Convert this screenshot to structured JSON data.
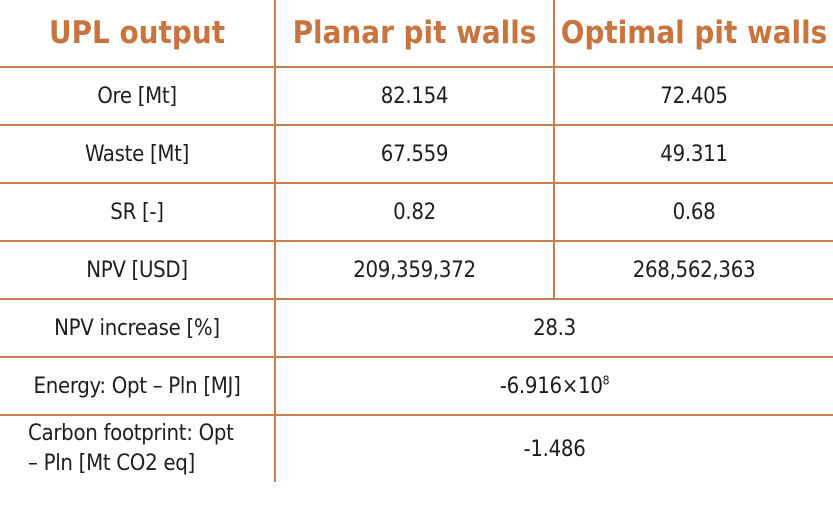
{
  "headers": [
    "UPL output",
    "Planar pit walls",
    "Optimal pit walls"
  ],
  "rows": [
    {
      "label": "Ore [Mt]",
      "planar": "82.154",
      "optimal": "72.405"
    },
    {
      "label": "Waste [Mt]",
      "planar": "67.559",
      "optimal": "49.311"
    },
    {
      "label": "SR [-]",
      "planar": "0.82",
      "optimal": "0.68"
    },
    {
      "label": "NPV [USD]",
      "planar": "209,359,372",
      "optimal": "268,562,363"
    }
  ],
  "merged_rows": [
    {
      "label": "NPV increase [%]",
      "value": "28.3"
    },
    {
      "label": "Energy: Opt – Pln [MJ]",
      "value_base": "-6.916×10",
      "value_exp": "8"
    },
    {
      "label_line1": "Carbon footprint: Opt",
      "label_line2": "– Pln [Mt CO2 eq]",
      "value": "-1.486"
    }
  ],
  "colors": {
    "accent": "#c8743f",
    "border": "#c8804f",
    "text": "#1e1e1e"
  }
}
